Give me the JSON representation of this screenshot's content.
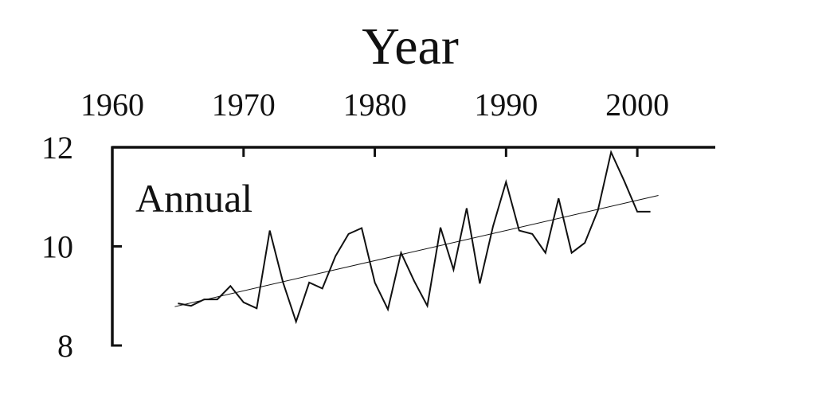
{
  "chart_data": {
    "type": "line",
    "title": "",
    "xlabel": "Year",
    "ylabel": "",
    "annotation": "Annual",
    "xlim": [
      1960,
      2006
    ],
    "ylim": [
      8,
      12
    ],
    "x_ticks": [
      "1960",
      "1970",
      "1980",
      "1990",
      "2000"
    ],
    "y_ticks": [
      "12",
      "10",
      "8"
    ],
    "grid": false,
    "legend": "none",
    "colors": {
      "line": "#111111",
      "axis": "#111111"
    },
    "series": [
      {
        "x": [
          1965,
          1966,
          1967,
          1968,
          1969,
          1970,
          1971,
          1972,
          1973,
          1974,
          1975,
          1976,
          1977,
          1978,
          1979,
          1980,
          1981,
          1982,
          1983,
          1984,
          1985,
          1986,
          1987,
          1988,
          1989,
          1990,
          1991,
          1992,
          1993,
          1994,
          1995,
          1996,
          1997,
          1998,
          1999,
          2000,
          2001
        ],
        "values": [
          8.85,
          8.8,
          8.93,
          8.93,
          9.2,
          8.87,
          8.75,
          10.32,
          9.28,
          8.48,
          9.27,
          9.15,
          9.8,
          10.25,
          10.37,
          9.27,
          8.73,
          9.87,
          9.3,
          8.8,
          10.38,
          9.53,
          10.77,
          9.25,
          10.4,
          11.3,
          10.32,
          10.25,
          9.87,
          10.97,
          9.87,
          10.07,
          10.73,
          11.9,
          11.32,
          10.7,
          10.7
        ]
      }
    ],
    "trend": {
      "x": [
        1965,
        2001
      ],
      "values": [
        8.8,
        10.98
      ]
    }
  }
}
